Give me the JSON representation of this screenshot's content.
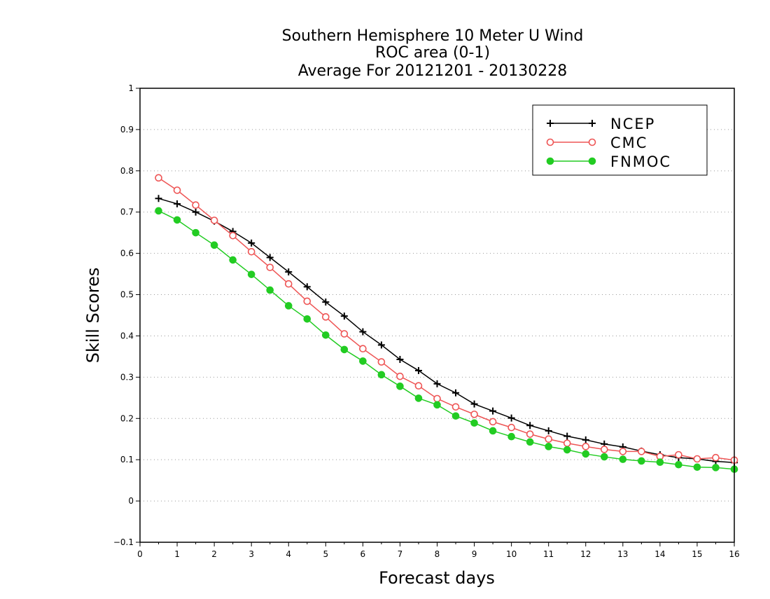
{
  "chart_data": {
    "type": "line",
    "title": [
      "Southern Hemisphere 10 Meter U Wind",
      "ROC area (0-1)",
      "Average For 20121201 - 20130228"
    ],
    "xlabel": "Forecast days",
    "ylabel": "Skill Scores",
    "xlim": [
      0,
      16
    ],
    "ylim": [
      -0.1,
      1
    ],
    "xticks": [
      "0",
      "1",
      "2",
      "3",
      "4",
      "5",
      "6",
      "7",
      "8",
      "9",
      "10",
      "11",
      "12",
      "13",
      "14",
      "15",
      "16"
    ],
    "yticks": [
      "−0.1",
      "0",
      "0.1",
      "0.2",
      "0.3",
      "0.4",
      "0.5",
      "0.6",
      "0.7",
      "0.8",
      "0.9",
      "1"
    ],
    "grid": "horizontal-dotted",
    "legend_position": "top-right",
    "x": [
      0.5,
      1,
      1.5,
      2,
      2.5,
      3,
      3.5,
      4,
      4.5,
      5,
      5.5,
      6,
      6.5,
      7,
      7.5,
      8,
      8.5,
      9,
      9.5,
      10,
      10.5,
      11,
      11.5,
      12,
      12.5,
      13,
      13.5,
      14,
      14.5,
      15,
      15.5,
      16
    ],
    "series": [
      {
        "name": "NCEP",
        "color": "#000000",
        "marker": "plus",
        "values": [
          0.733,
          0.72,
          0.7,
          0.678,
          0.653,
          0.625,
          0.59,
          0.555,
          0.519,
          0.482,
          0.448,
          0.41,
          0.378,
          0.343,
          0.316,
          0.284,
          0.262,
          0.235,
          0.218,
          0.201,
          0.183,
          0.17,
          0.157,
          0.148,
          0.138,
          0.131,
          0.121,
          0.112,
          0.105,
          0.102,
          0.096,
          0.093
        ]
      },
      {
        "name": "CMC",
        "color": "#ee5555",
        "marker": "open-circle",
        "values": [
          0.783,
          0.753,
          0.717,
          0.68,
          0.643,
          0.604,
          0.566,
          0.526,
          0.484,
          0.446,
          0.405,
          0.369,
          0.337,
          0.302,
          0.279,
          0.248,
          0.228,
          0.21,
          0.192,
          0.178,
          0.162,
          0.15,
          0.14,
          0.132,
          0.125,
          0.12,
          0.12,
          0.108,
          0.112,
          0.102,
          0.105,
          0.099
        ]
      },
      {
        "name": "FNMOC",
        "color": "#22cc22",
        "marker": "filled-circle",
        "values": [
          0.703,
          0.681,
          0.65,
          0.62,
          0.584,
          0.549,
          0.511,
          0.473,
          0.441,
          0.402,
          0.367,
          0.339,
          0.306,
          0.278,
          0.249,
          0.233,
          0.206,
          0.189,
          0.17,
          0.156,
          0.143,
          0.132,
          0.124,
          0.114,
          0.107,
          0.101,
          0.097,
          0.094,
          0.088,
          0.082,
          0.081,
          0.077
        ]
      }
    ]
  }
}
